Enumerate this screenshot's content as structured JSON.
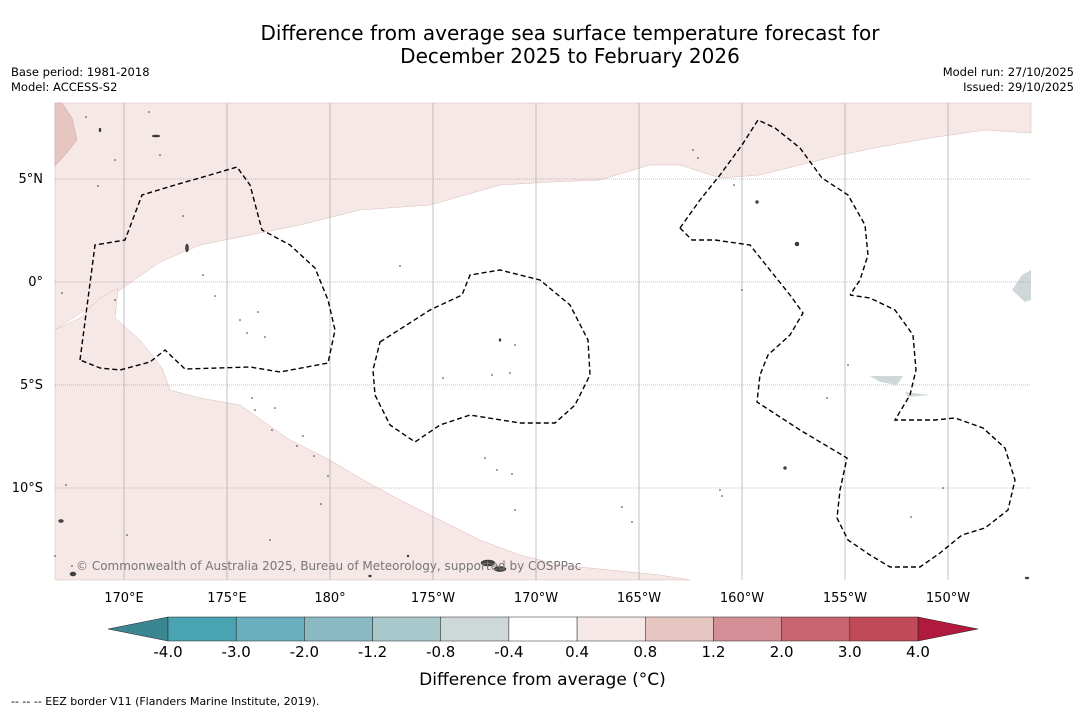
{
  "title": {
    "line1": "Difference from average sea surface temperature forecast for",
    "line2": "December 2025 to February 2026"
  },
  "meta_left": {
    "base_period": "Base period: 1981-2018",
    "model": "Model: ACCESS-S2"
  },
  "meta_right": {
    "model_run": "Model run: 27/10/2025",
    "issued": "Issued: 29/10/2025"
  },
  "map": {
    "latitude_labels": [
      "5°N",
      "0°",
      "5°S",
      "10°S"
    ],
    "longitude_labels": [
      "170°E",
      "175°E",
      "180°",
      "175°W",
      "170°W",
      "165°W",
      "160°W",
      "155°W",
      "150°W"
    ],
    "copyright": "© Commonwealth of Australia 2025, Bureau of Meteorology, supported by COSPPac",
    "colors": {
      "anomaly_0_4_to_0_8": "#f5e8e6",
      "anomaly_0_8_to_1_2": "#e6c6c1",
      "anomaly_minus_0_8_to_minus_0_4": "#cfd8d9",
      "land": "#555555",
      "eez": "#000000"
    }
  },
  "colorbar": {
    "ticks": [
      "-4.0",
      "-3.0",
      "-2.0",
      "-1.2",
      "-0.8",
      "-0.4",
      "0.4",
      "0.8",
      "1.2",
      "2.0",
      "3.0",
      "4.0"
    ],
    "colors": [
      "#4aa3b3",
      "#6aafbd",
      "#8ab9c4",
      "#a9c8cc",
      "#cfd8d9",
      "#ffffff",
      "#f5e8e6",
      "#e6c6c1",
      "#d48e95",
      "#c7646e",
      "#c04a58"
    ],
    "extend_low_color": "#3a8791",
    "extend_high_color": "#b11a3d",
    "title": "Difference from average (°C)"
  },
  "footnote": "--  --  -- EEZ border V11 (Flanders Marine Institute, 2019)."
}
